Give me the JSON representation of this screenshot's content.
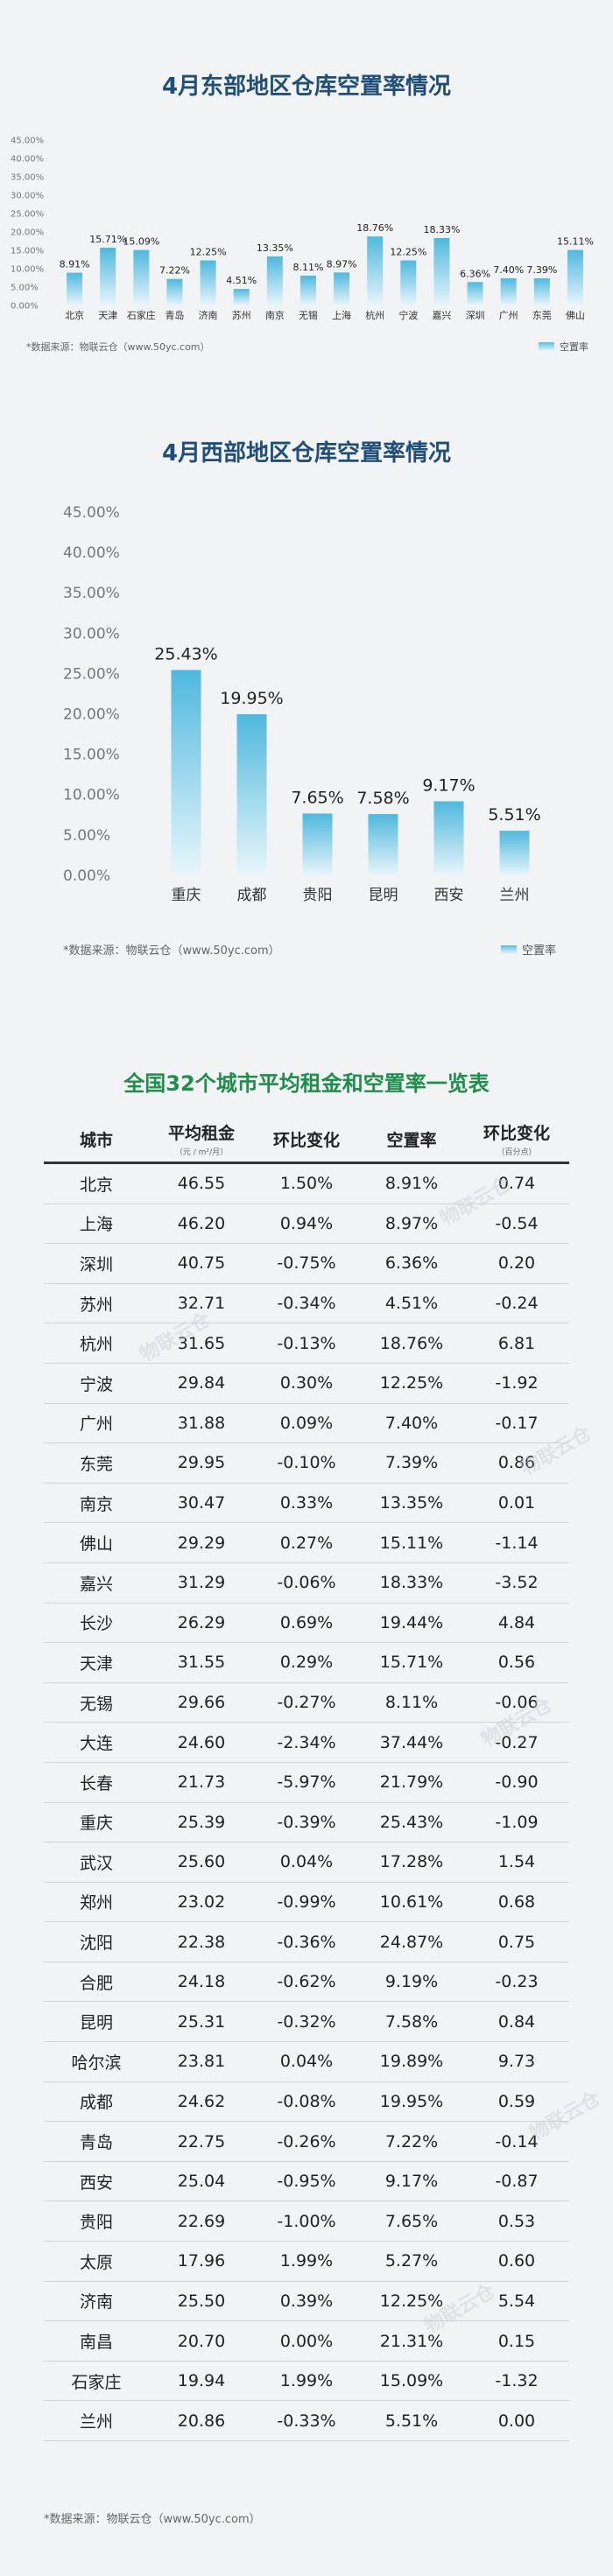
{
  "chart_data": [
    {
      "type": "bar",
      "title": "4月东部地区仓库空置率情况",
      "categories": [
        "北京",
        "天津",
        "石家庄",
        "青岛",
        "济南",
        "苏州",
        "南京",
        "无锡",
        "上海",
        "杭州",
        "宁波",
        "嘉兴",
        "深圳",
        "广州",
        "东莞",
        "佛山"
      ],
      "series": [
        {
          "name": "空置率",
          "values": [
            8.91,
            15.71,
            15.09,
            7.22,
            12.25,
            4.51,
            13.35,
            8.11,
            8.97,
            18.76,
            12.25,
            18.33,
            6.36,
            7.4,
            7.39,
            15.11
          ]
        }
      ],
      "value_labels": [
        "8.91%",
        "15.71%",
        "15.09%",
        "7.22%",
        "12.25%",
        "4.51%",
        "13.35%",
        "8.11%",
        "8.97%",
        "18.76%",
        "12.25%",
        "18.33%",
        "6.36%",
        "7.40%",
        "7.39%",
        "15.11%"
      ],
      "y_ticks": [
        "0.00%",
        "5.00%",
        "10.00%",
        "15.00%",
        "20.00%",
        "25.00%",
        "30.00%",
        "35.00%",
        "40.00%",
        "45.00%"
      ],
      "ylim": [
        0,
        45
      ],
      "source": "*数据来源：物联云仓（www.50yc.com）",
      "legend": "空置率"
    },
    {
      "type": "bar",
      "title": "4月西部地区仓库空置率情况",
      "categories": [
        "重庆",
        "成都",
        "贵阳",
        "昆明",
        "西安",
        "兰州"
      ],
      "series": [
        {
          "name": "空置率",
          "values": [
            25.43,
            19.95,
            7.65,
            7.58,
            9.17,
            5.51
          ]
        }
      ],
      "value_labels": [
        "25.43%",
        "19.95%",
        "7.65%",
        "7.58%",
        "9.17%",
        "5.51%"
      ],
      "y_ticks": [
        "0.00%",
        "5.00%",
        "10.00%",
        "15.00%",
        "20.00%",
        "25.00%",
        "30.00%",
        "35.00%",
        "40.00%",
        "45.00%"
      ],
      "ylim": [
        0,
        45
      ],
      "source": "*数据来源：物联云仓（www.50yc.com）",
      "legend": "空置率"
    },
    {
      "type": "table",
      "title": "全国32个城市平均租金和空置率一览表",
      "columns": [
        "城市",
        "平均租金",
        "环比变化",
        "空置率",
        "环比变化"
      ],
      "column_subs": [
        "",
        "（元 / m²/月）",
        "",
        "",
        "（百分点）"
      ],
      "rows": [
        [
          "北京",
          "46.55",
          "1.50%",
          "8.91%",
          "0.74"
        ],
        [
          "上海",
          "46.20",
          "0.94%",
          "8.97%",
          "-0.54"
        ],
        [
          "深圳",
          "40.75",
          "-0.75%",
          "6.36%",
          "0.20"
        ],
        [
          "苏州",
          "32.71",
          "-0.34%",
          "4.51%",
          "-0.24"
        ],
        [
          "杭州",
          "31.65",
          "-0.13%",
          "18.76%",
          "6.81"
        ],
        [
          "宁波",
          "29.84",
          "0.30%",
          "12.25%",
          "-1.92"
        ],
        [
          "广州",
          "31.88",
          "0.09%",
          "7.40%",
          "-0.17"
        ],
        [
          "东莞",
          "29.95",
          "-0.10%",
          "7.39%",
          "0.86"
        ],
        [
          "南京",
          "30.47",
          "0.33%",
          "13.35%",
          "0.01"
        ],
        [
          "佛山",
          "29.29",
          "0.27%",
          "15.11%",
          "-1.14"
        ],
        [
          "嘉兴",
          "31.29",
          "-0.06%",
          "18.33%",
          "-3.52"
        ],
        [
          "长沙",
          "26.29",
          "0.69%",
          "19.44%",
          "4.84"
        ],
        [
          "天津",
          "31.55",
          "0.29%",
          "15.71%",
          "0.56"
        ],
        [
          "无锡",
          "29.66",
          "-0.27%",
          "8.11%",
          "-0.06"
        ],
        [
          "大连",
          "24.60",
          "-2.34%",
          "37.44%",
          "-0.27"
        ],
        [
          "长春",
          "21.73",
          "-5.97%",
          "21.79%",
          "-0.90"
        ],
        [
          "重庆",
          "25.39",
          "-0.39%",
          "25.43%",
          "-1.09"
        ],
        [
          "武汉",
          "25.60",
          "0.04%",
          "17.28%",
          "1.54"
        ],
        [
          "郑州",
          "23.02",
          "-0.99%",
          "10.61%",
          "0.68"
        ],
        [
          "沈阳",
          "22.38",
          "-0.36%",
          "24.87%",
          "0.75"
        ],
        [
          "合肥",
          "24.18",
          "-0.62%",
          "9.19%",
          "-0.23"
        ],
        [
          "昆明",
          "25.31",
          "-0.32%",
          "7.58%",
          "0.84"
        ],
        [
          "哈尔滨",
          "23.81",
          "0.04%",
          "19.89%",
          "9.73"
        ],
        [
          "成都",
          "24.62",
          "-0.08%",
          "19.95%",
          "0.59"
        ],
        [
          "青岛",
          "22.75",
          "-0.26%",
          "7.22%",
          "-0.14"
        ],
        [
          "西安",
          "25.04",
          "-0.95%",
          "9.17%",
          "-0.87"
        ],
        [
          "贵阳",
          "22.69",
          "-1.00%",
          "7.65%",
          "0.53"
        ],
        [
          "太原",
          "17.96",
          "1.99%",
          "5.27%",
          "0.60"
        ],
        [
          "济南",
          "25.50",
          "0.39%",
          "12.25%",
          "5.54"
        ],
        [
          "南昌",
          "20.70",
          "0.00%",
          "21.31%",
          "0.15"
        ],
        [
          "石家庄",
          "19.94",
          "1.99%",
          "15.09%",
          "-1.32"
        ],
        [
          "兰州",
          "20.86",
          "-0.33%",
          "5.51%",
          "0.00"
        ]
      ],
      "source": "*数据来源：物联云仓（www.50yc.com）"
    }
  ],
  "watermark": "物联云仓"
}
